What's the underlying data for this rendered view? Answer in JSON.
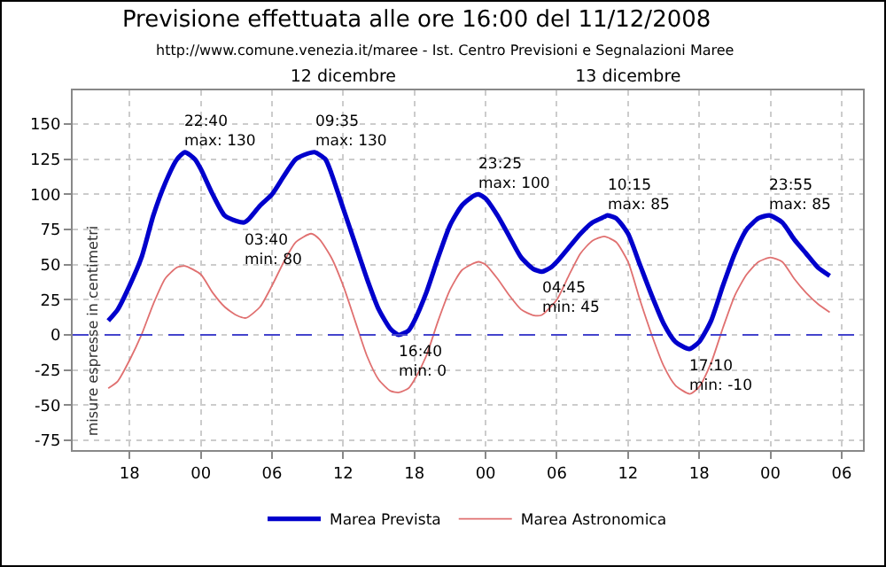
{
  "chart_data": {
    "type": "line",
    "title": "Previsione effettuata alle ore 16:00 del 11/12/2008",
    "subtitle": "http://www.comune.venezia.it/maree - Ist. Centro Previsioni e Segnalazioni Maree",
    "ylabel": "misure espresse in centimetri",
    "xlim": [
      "2008-12-11T13:12",
      "2008-12-14T07:48"
    ],
    "xticks": [
      {
        "value": "2008-12-11T18:00",
        "label": "18"
      },
      {
        "value": "2008-12-12T00:00",
        "label": "00"
      },
      {
        "value": "2008-12-12T06:00",
        "label": "06"
      },
      {
        "value": "2008-12-12T12:00",
        "label": "12"
      },
      {
        "value": "2008-12-12T18:00",
        "label": "18"
      },
      {
        "value": "2008-12-13T00:00",
        "label": "00"
      },
      {
        "value": "2008-12-13T06:00",
        "label": "06"
      },
      {
        "value": "2008-12-13T12:00",
        "label": "12"
      },
      {
        "value": "2008-12-13T18:00",
        "label": "18"
      },
      {
        "value": "2008-12-14T00:00",
        "label": "00"
      },
      {
        "value": "2008-12-14T06:00",
        "label": "06"
      }
    ],
    "x2lim": [
      "2008-12-11T13:12",
      "2008-12-14T07:48"
    ],
    "x2ticks": [
      {
        "value": "2008-12-12T12:00",
        "label": "12 dicembre"
      },
      {
        "value": "2008-12-13T12:00",
        "label": "13 dicembre"
      }
    ],
    "ylim": [
      -82,
      174
    ],
    "yticks": [
      -75,
      -50,
      -25,
      0,
      25,
      50,
      75,
      100,
      125,
      150
    ],
    "grid": true,
    "legend": "bottom",
    "ref_lines": [
      {
        "axis": "y",
        "value": 0,
        "color": "#4444cc",
        "line_style": "dashed"
      }
    ],
    "series": [
      {
        "name": "Marea Prevista",
        "color": "#0000cc",
        "x": [
          "2008-12-11T16:12",
          "2008-12-11T17:00",
          "2008-12-11T18:00",
          "2008-12-11T19:00",
          "2008-12-11T20:00",
          "2008-12-11T21:00",
          "2008-12-11T22:00",
          "2008-12-11T22:40",
          "2008-12-11T23:30",
          "2008-12-12T00:00",
          "2008-12-12T01:00",
          "2008-12-12T02:00",
          "2008-12-12T03:00",
          "2008-12-12T03:40",
          "2008-12-12T04:00",
          "2008-12-12T05:00",
          "2008-12-12T06:00",
          "2008-12-12T07:00",
          "2008-12-12T08:00",
          "2008-12-12T09:00",
          "2008-12-12T09:35",
          "2008-12-12T10:30",
          "2008-12-12T11:00",
          "2008-12-12T12:00",
          "2008-12-12T13:00",
          "2008-12-12T14:00",
          "2008-12-12T15:00",
          "2008-12-12T16:00",
          "2008-12-12T16:40",
          "2008-12-12T17:30",
          "2008-12-12T18:00",
          "2008-12-12T19:00",
          "2008-12-12T20:00",
          "2008-12-12T21:00",
          "2008-12-12T22:00",
          "2008-12-12T23:00",
          "2008-12-12T23:25",
          "2008-12-13T00:00",
          "2008-12-13T01:00",
          "2008-12-13T02:00",
          "2008-12-13T03:00",
          "2008-12-13T04:00",
          "2008-12-13T04:45",
          "2008-12-13T05:30",
          "2008-12-13T06:00",
          "2008-12-13T07:00",
          "2008-12-13T08:00",
          "2008-12-13T09:00",
          "2008-12-13T10:00",
          "2008-12-13T10:15",
          "2008-12-13T11:00",
          "2008-12-13T12:00",
          "2008-12-13T13:00",
          "2008-12-13T14:00",
          "2008-12-13T15:00",
          "2008-12-13T16:00",
          "2008-12-13T17:10",
          "2008-12-13T18:00",
          "2008-12-13T19:00",
          "2008-12-13T20:00",
          "2008-12-13T21:00",
          "2008-12-13T22:00",
          "2008-12-13T23:00",
          "2008-12-13T23:55",
          "2008-12-14T01:00",
          "2008-12-14T02:00",
          "2008-12-14T03:00",
          "2008-12-14T04:00",
          "2008-12-14T05:00"
        ],
        "values": [
          10,
          18,
          35,
          55,
          85,
          108,
          125,
          130,
          125,
          118,
          100,
          85,
          81,
          80,
          82,
          92,
          100,
          113,
          125,
          129,
          130,
          125,
          115,
          90,
          65,
          40,
          18,
          4,
          0,
          3,
          10,
          30,
          55,
          78,
          92,
          99,
          100,
          97,
          85,
          70,
          55,
          47,
          45,
          48,
          52,
          62,
          72,
          80,
          84,
          85,
          83,
          72,
          50,
          28,
          8,
          -5,
          -10,
          -5,
          10,
          35,
          58,
          75,
          83,
          85,
          80,
          68,
          58,
          48,
          42
        ]
      },
      {
        "name": "Marea Astronomica",
        "color": "#e07070",
        "x": [
          "2008-12-11T16:12",
          "2008-12-11T17:00",
          "2008-12-11T18:00",
          "2008-12-11T19:00",
          "2008-12-11T20:00",
          "2008-12-11T21:00",
          "2008-12-11T22:00",
          "2008-12-11T22:40",
          "2008-12-12T00:00",
          "2008-12-12T01:00",
          "2008-12-12T02:00",
          "2008-12-12T03:00",
          "2008-12-12T03:48",
          "2008-12-12T05:00",
          "2008-12-12T06:00",
          "2008-12-12T07:00",
          "2008-12-12T08:00",
          "2008-12-12T09:18",
          "2008-12-12T10:00",
          "2008-12-12T11:00",
          "2008-12-12T12:00",
          "2008-12-12T13:00",
          "2008-12-12T14:00",
          "2008-12-12T15:00",
          "2008-12-12T16:00",
          "2008-12-12T16:42",
          "2008-12-12T17:30",
          "2008-12-12T18:00",
          "2008-12-12T19:00",
          "2008-12-12T20:00",
          "2008-12-12T21:00",
          "2008-12-12T22:00",
          "2008-12-12T23:00",
          "2008-12-12T23:24",
          "2008-12-13T00:00",
          "2008-12-13T01:00",
          "2008-12-13T02:00",
          "2008-12-13T03:00",
          "2008-12-13T04:00",
          "2008-12-13T04:42",
          "2008-12-13T06:00",
          "2008-12-13T07:00",
          "2008-12-13T08:00",
          "2008-12-13T09:00",
          "2008-12-13T10:00",
          "2008-12-13T11:00",
          "2008-12-13T12:00",
          "2008-12-13T13:00",
          "2008-12-13T14:00",
          "2008-12-13T15:00",
          "2008-12-13T16:00",
          "2008-12-13T17:12",
          "2008-12-13T18:00",
          "2008-12-13T19:00",
          "2008-12-13T20:00",
          "2008-12-13T21:00",
          "2008-12-13T22:00",
          "2008-12-13T23:00",
          "2008-12-14T00:00",
          "2008-12-14T01:00",
          "2008-12-14T02:00",
          "2008-12-14T03:00",
          "2008-12-14T04:00",
          "2008-12-14T05:00"
        ],
        "values": [
          -38,
          -33,
          -18,
          0,
          22,
          40,
          48,
          49,
          43,
          30,
          20,
          14,
          12,
          20,
          35,
          52,
          66,
          72,
          68,
          55,
          35,
          10,
          -15,
          -32,
          -40,
          -41,
          -38,
          -32,
          -15,
          10,
          32,
          46,
          51,
          52,
          50,
          40,
          28,
          18,
          14,
          14,
          25,
          42,
          58,
          67,
          70,
          66,
          52,
          25,
          0,
          -22,
          -36,
          -42,
          -37,
          -20,
          5,
          28,
          43,
          52,
          55,
          52,
          40,
          30,
          22,
          16
        ]
      }
    ],
    "annotations": [
      {
        "text": "22:40\nmax: 130",
        "x": "2008-12-11T22:40",
        "y": 130
      },
      {
        "text": "03:40\nmin: 80",
        "x": "2008-12-12T03:40",
        "y": 80
      },
      {
        "text": "09:35\nmax: 130",
        "x": "2008-12-12T09:35",
        "y": 130
      },
      {
        "text": "16:40\nmin: 0",
        "x": "2008-12-12T16:40",
        "y": 0
      },
      {
        "text": "23:25\nmax: 100",
        "x": "2008-12-12T23:25",
        "y": 100
      },
      {
        "text": "04:45\nmin: 45",
        "x": "2008-12-13T04:45",
        "y": 45
      },
      {
        "text": "10:15\nmax: 85",
        "x": "2008-12-13T10:15",
        "y": 85
      },
      {
        "text": "17:10\nmin: -10",
        "x": "2008-12-13T17:10",
        "y": -10
      },
      {
        "text": "23:55\nmax: 85",
        "x": "2008-12-13T23:55",
        "y": 85
      }
    ]
  }
}
